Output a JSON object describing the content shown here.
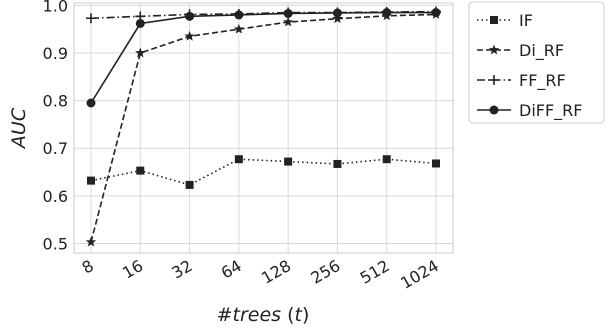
{
  "chart_data": {
    "type": "line",
    "categories": [
      "8",
      "16",
      "32",
      "64",
      "128",
      "256",
      "512",
      "1024"
    ],
    "xlabel": "#trees (t)",
    "ylabel": "AUC",
    "ylim": [
      0.48,
      1.005
    ],
    "yticks": [
      "0.5",
      "0.6",
      "0.7",
      "0.8",
      "0.9",
      "1.0"
    ],
    "grid": true,
    "legend_position": "outside-right",
    "series": [
      {
        "name": "IF",
        "marker": "square",
        "dash": "dotted",
        "color": "#222222",
        "values": [
          0.632,
          0.653,
          0.623,
          0.677,
          0.672,
          0.667,
          0.677,
          0.668
        ]
      },
      {
        "name": "Di_RF",
        "marker": "star",
        "dash": "dashed",
        "color": "#222222",
        "values": [
          0.503,
          0.9,
          0.935,
          0.95,
          0.965,
          0.972,
          0.978,
          0.981
        ]
      },
      {
        "name": "FF_RF",
        "marker": "plus",
        "dash": "dashdot",
        "color": "#222222",
        "values": [
          0.973,
          0.977,
          0.981,
          0.982,
          0.985,
          0.985,
          0.986,
          0.987
        ]
      },
      {
        "name": "DiFF_RF",
        "marker": "circle",
        "dash": "solid",
        "color": "#222222",
        "values": [
          0.795,
          0.962,
          0.977,
          0.98,
          0.983,
          0.984,
          0.985,
          0.985
        ]
      }
    ]
  }
}
